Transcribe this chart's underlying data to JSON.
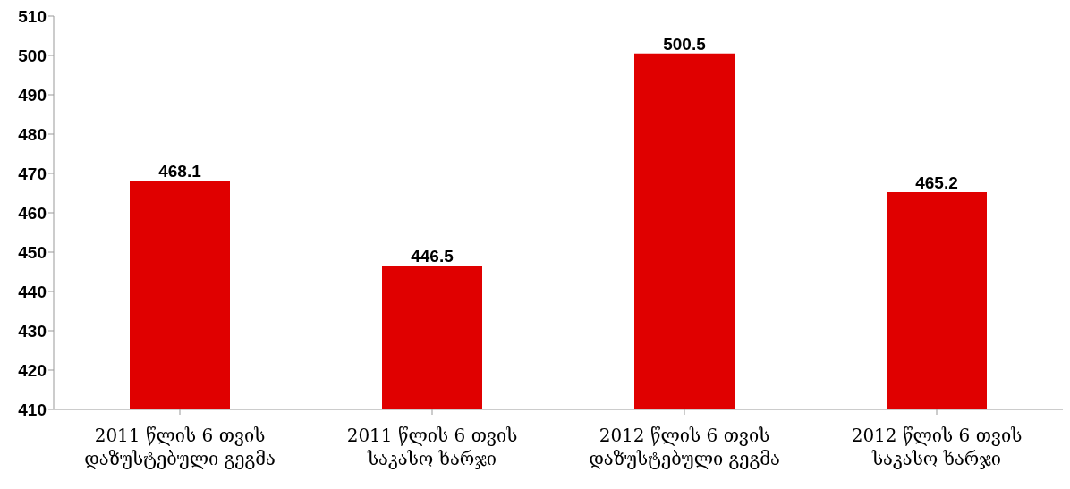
{
  "chart_data": {
    "type": "bar",
    "categories": [
      "2011 წლის 6 თვის\nდაზუსტებული გეგმა",
      "2011 წლის 6 თვის\nსაკასო ხარჯი",
      "2012 წლის 6 თვის\nდაზუსტებული გეგმა",
      "2012 წლის 6 თვის\nსაკასო ხარჯი"
    ],
    "values": [
      468.1,
      446.5,
      500.5,
      465.2
    ],
    "color": "#e00000",
    "ylim": [
      410,
      510
    ],
    "yticks": [
      410,
      420,
      430,
      440,
      450,
      460,
      470,
      480,
      490,
      500,
      510
    ],
    "grid": false,
    "data_labels": true
  }
}
